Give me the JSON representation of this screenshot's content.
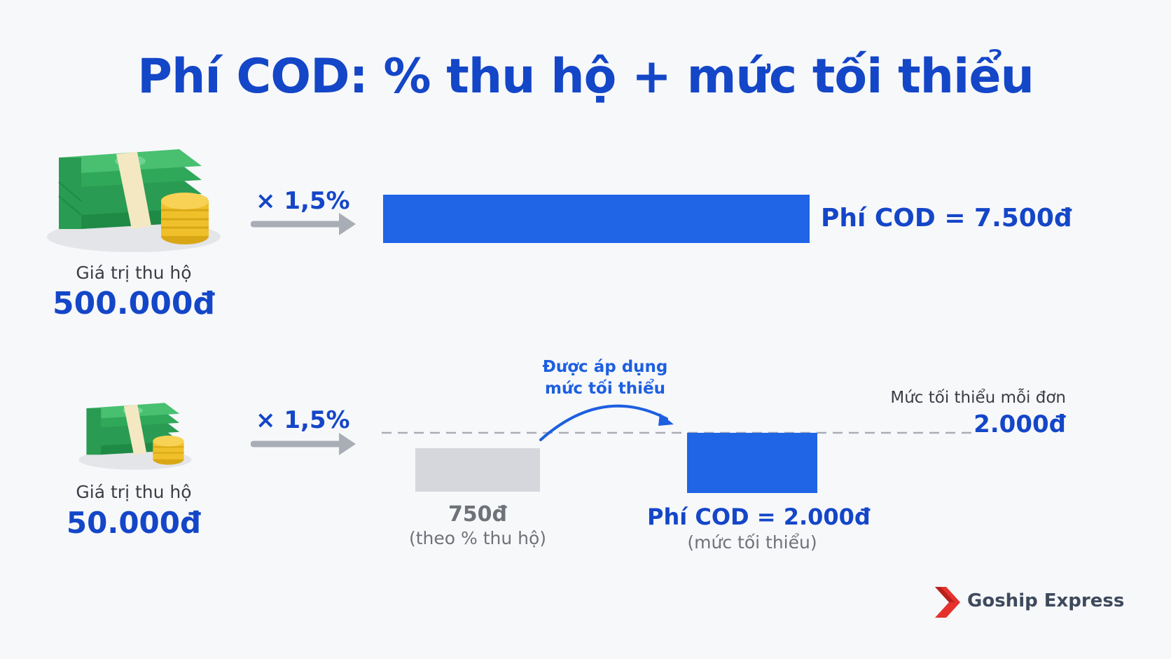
{
  "title": "Phí COD: % thu hộ + mức tối thiểu",
  "example_large": {
    "label": "Giá trị thu hộ",
    "value": "500.000đ",
    "multiplier": "× 1,5%",
    "result": "Phí COD = 7.500đ"
  },
  "example_small": {
    "label": "Giá trị thu hộ",
    "value": "50.000đ",
    "multiplier": "× 1,5%",
    "calc_value": "750đ",
    "calc_note": "(theo % thu hộ)",
    "applied_note_line1": "Được áp dụng",
    "applied_note_line2": "mức tối thiểu",
    "result": "Phí COD = 2.000đ",
    "result_note": "(mức tối thiểu)",
    "min_label": "Mức tối thiểu mỗi đơn",
    "min_value": "2.000đ"
  },
  "brand": "Goship Express",
  "colors": {
    "accent_blue": "#1f65e6",
    "title_blue": "#1446c8",
    "muted_gray": "#d5d7dc",
    "brand_red": "#e5322d"
  },
  "icons": [
    "money-stack-icon",
    "arrow-right-icon",
    "curved-arrow-icon",
    "goship-logo-icon"
  ]
}
